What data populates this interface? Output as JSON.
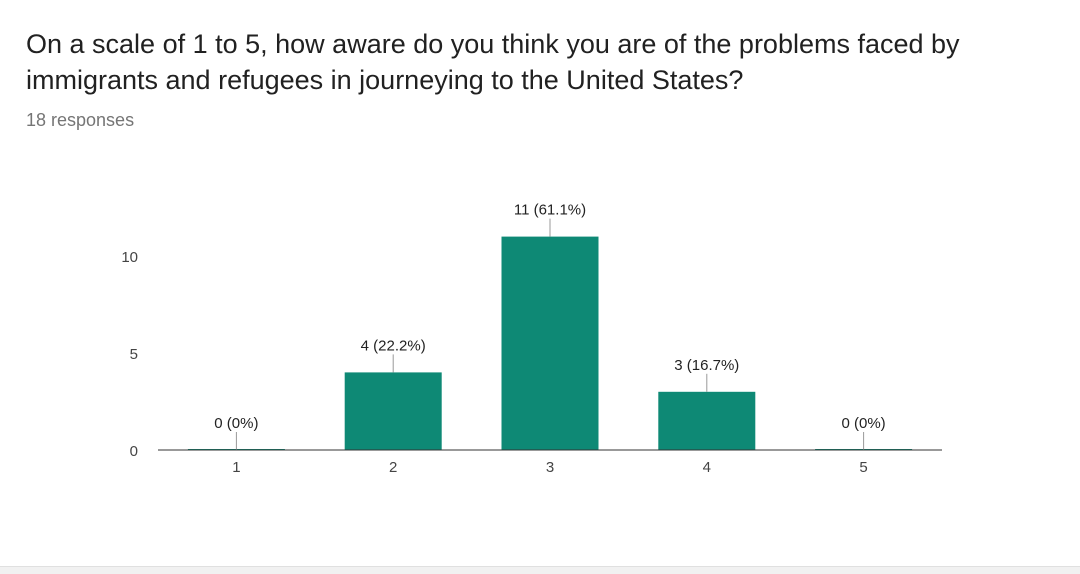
{
  "question": {
    "title": "On a scale of 1 to 5, how aware do you think you are of the problems faced by immigrants and refugees in journeying to the United States?",
    "responses": "18 responses"
  },
  "colors": {
    "bar": "#0e8975",
    "axis": "#333333",
    "leader": "#999999"
  },
  "chart_data": {
    "type": "bar",
    "categories": [
      "1",
      "2",
      "3",
      "4",
      "5"
    ],
    "values": [
      0,
      4,
      11,
      3,
      0
    ],
    "data_labels": [
      "0 (0%)",
      "4 (22.2%)",
      "11 (61.1%)",
      "3 (16.7%)",
      "0 (0%)"
    ],
    "yticks": [
      0,
      5,
      10
    ],
    "ylim": [
      0,
      11
    ],
    "title": "On a scale of 1 to 5, how aware do you think you are of the problems faced by immigrants and refugees in journeying to the United States?",
    "xlabel": "",
    "ylabel": "",
    "grid": false,
    "legend": "none"
  }
}
